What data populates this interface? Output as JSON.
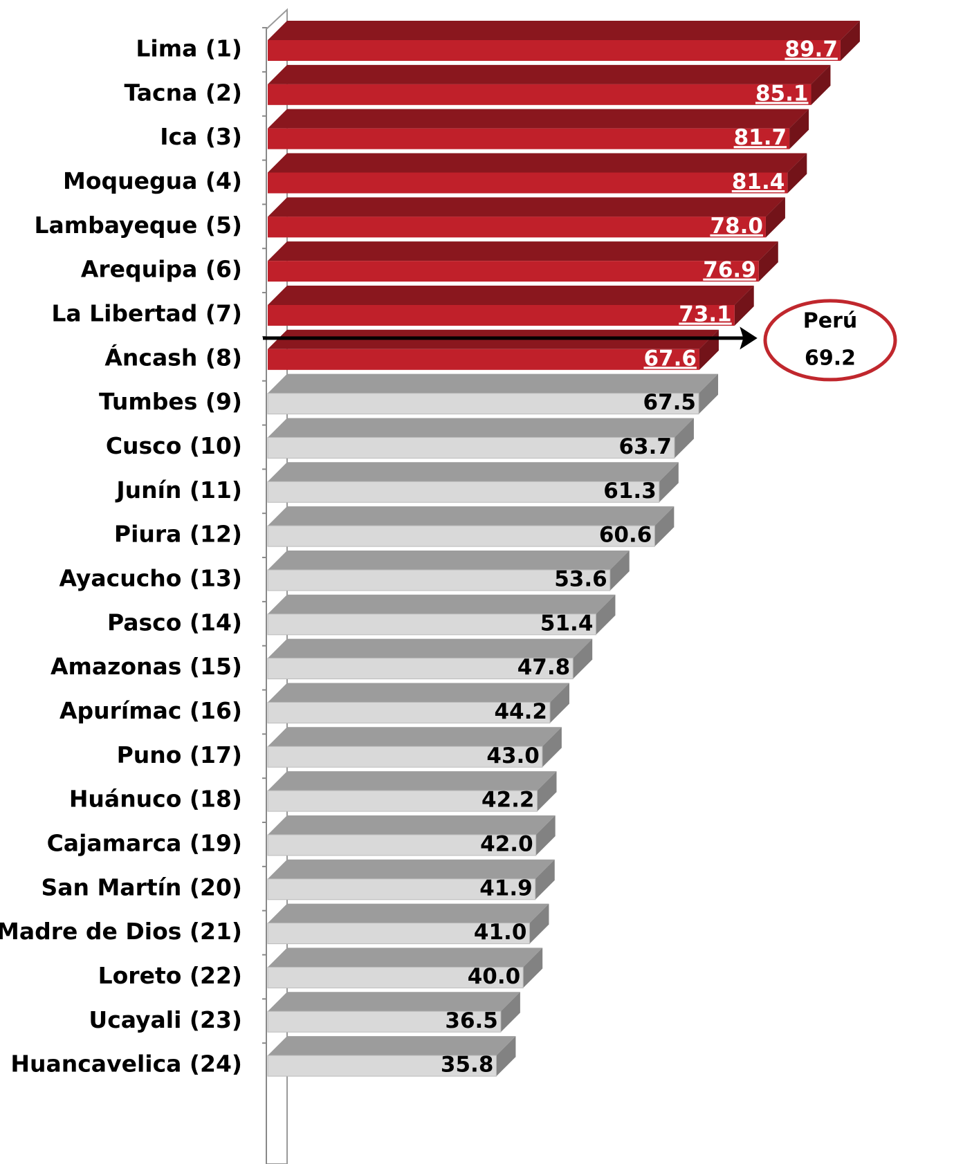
{
  "chart_data": {
    "type": "bar3d_horizontal",
    "categories": [
      "Lima (1)",
      "Tacna (2)",
      "Ica (3)",
      "Moquegua (4)",
      "Lambayeque (5)",
      "Arequipa (6)",
      "La Libertad (7)",
      "Áncash (8)",
      "Tumbes (9)",
      "Cusco (10)",
      "Junín (11)",
      "Piura (12)",
      "Ayacucho (13)",
      "Pasco (14)",
      "Amazonas (15)",
      "Apurímac (16)",
      "Puno (17)",
      "Huánuco (18)",
      "Cajamarca (19)",
      "San Martín (20)",
      "Madre de Dios (21)",
      "Loreto (22)",
      "Ucayali (23)",
      "Huancavelica (24)"
    ],
    "values": [
      89.7,
      85.1,
      81.7,
      81.4,
      78.0,
      76.9,
      73.1,
      67.6,
      67.5,
      63.7,
      61.3,
      60.6,
      53.6,
      51.4,
      47.8,
      44.2,
      43.0,
      42.2,
      42.0,
      41.9,
      41.0,
      40.0,
      36.5,
      35.8
    ],
    "value_labels": [
      "89.7",
      "85.1",
      "81.7",
      "81.4",
      "78.0",
      "76.9",
      "73.1",
      "67.6",
      "67.5",
      "63.7",
      "61.3",
      "60.6",
      "53.6",
      "51.4",
      "47.8",
      "44.2",
      "43.0",
      "42.2",
      "42.0",
      "41.9",
      "41.0",
      "40.0",
      "36.5",
      "35.8"
    ],
    "colors": [
      "#c0202a",
      "#c0202a",
      "#c0202a",
      "#c0202a",
      "#c0202a",
      "#c0202a",
      "#c0202a",
      "#c0202a",
      "#d9d9d9",
      "#d9d9d9",
      "#d9d9d9",
      "#d9d9d9",
      "#d9d9d9",
      "#d9d9d9",
      "#d9d9d9",
      "#d9d9d9",
      "#d9d9d9",
      "#d9d9d9",
      "#d9d9d9",
      "#d9d9d9",
      "#d9d9d9",
      "#d9d9d9",
      "#d9d9d9",
      "#d9d9d9"
    ],
    "xlim": [
      0,
      100
    ],
    "annotation": {
      "label": "Perú",
      "value": 69.2
    }
  }
}
